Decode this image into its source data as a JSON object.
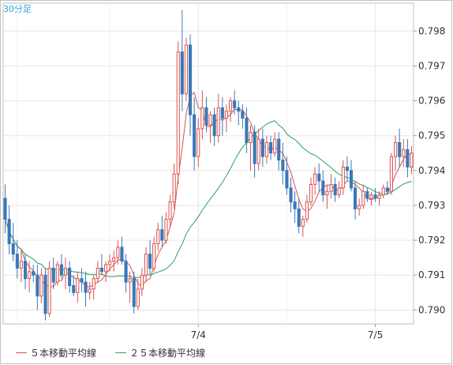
{
  "chart_data": {
    "type": "candlestick",
    "timeframe": "30分足",
    "y_ticks": [
      "0.798",
      "0.797",
      "0.796",
      "0.795",
      "0.794",
      "0.793",
      "0.792",
      "0.791",
      "0.790"
    ],
    "y_range": [
      0.7896,
      0.7988
    ],
    "x_ticks": [
      {
        "label": "7/4",
        "index": 48
      },
      {
        "label": "7/5",
        "index": 92
      }
    ],
    "bar_count": 102,
    "grid": true,
    "up_color": "#d9534f",
    "down_color": "#3a78b8",
    "ohlc": [
      [
        0.7932,
        0.7936,
        0.7922,
        0.7926
      ],
      [
        0.7926,
        0.793,
        0.7916,
        0.7919
      ],
      [
        0.7919,
        0.7925,
        0.7914,
        0.7916
      ],
      [
        0.7916,
        0.792,
        0.7909,
        0.7912
      ],
      [
        0.7912,
        0.7917,
        0.7908,
        0.7914
      ],
      [
        0.7914,
        0.7916,
        0.7906,
        0.7909
      ],
      [
        0.7909,
        0.7914,
        0.7905,
        0.7911
      ],
      [
        0.7911,
        0.7913,
        0.7908,
        0.791
      ],
      [
        0.791,
        0.7913,
        0.79,
        0.7904
      ],
      [
        0.7904,
        0.7912,
        0.7902,
        0.791
      ],
      [
        0.791,
        0.7912,
        0.7897,
        0.7899
      ],
      [
        0.7899,
        0.7914,
        0.7898,
        0.7912
      ],
      [
        0.7912,
        0.7915,
        0.7906,
        0.7908
      ],
      [
        0.7908,
        0.7914,
        0.7907,
        0.7913
      ],
      [
        0.7913,
        0.7916,
        0.7909,
        0.791
      ],
      [
        0.791,
        0.7915,
        0.7906,
        0.7912
      ],
      [
        0.7912,
        0.7914,
        0.7905,
        0.7907
      ],
      [
        0.7907,
        0.791,
        0.7904,
        0.7905
      ],
      [
        0.7905,
        0.7911,
        0.7902,
        0.7909
      ],
      [
        0.7909,
        0.7912,
        0.7905,
        0.7908
      ],
      [
        0.7908,
        0.7911,
        0.7901,
        0.7905
      ],
      [
        0.7905,
        0.7908,
        0.7903,
        0.7906
      ],
      [
        0.7906,
        0.791,
        0.7903,
        0.7909
      ],
      [
        0.7909,
        0.7914,
        0.7908,
        0.7912
      ],
      [
        0.7912,
        0.7916,
        0.791,
        0.7911
      ],
      [
        0.7911,
        0.7914,
        0.7908,
        0.7913
      ],
      [
        0.7913,
        0.7916,
        0.7911,
        0.7914
      ],
      [
        0.7914,
        0.7917,
        0.7911,
        0.7915
      ],
      [
        0.7915,
        0.792,
        0.7913,
        0.7918
      ],
      [
        0.7918,
        0.7921,
        0.7913,
        0.7914
      ],
      [
        0.7914,
        0.7916,
        0.7905,
        0.7908
      ],
      [
        0.7908,
        0.7911,
        0.7902,
        0.7909
      ],
      [
        0.7909,
        0.7911,
        0.7899,
        0.7901
      ],
      [
        0.7901,
        0.7909,
        0.79,
        0.7906
      ],
      [
        0.7906,
        0.7912,
        0.7904,
        0.791
      ],
      [
        0.791,
        0.7918,
        0.7908,
        0.7916
      ],
      [
        0.7916,
        0.792,
        0.791,
        0.7912
      ],
      [
        0.7912,
        0.7921,
        0.7911,
        0.7919
      ],
      [
        0.7919,
        0.7925,
        0.7917,
        0.7923
      ],
      [
        0.7923,
        0.7927,
        0.7918,
        0.792
      ],
      [
        0.792,
        0.7928,
        0.7919,
        0.7926
      ],
      [
        0.7926,
        0.7933,
        0.7924,
        0.7931
      ],
      [
        0.7931,
        0.7942,
        0.7929,
        0.7939
      ],
      [
        0.7939,
        0.7977,
        0.7936,
        0.7974
      ],
      [
        0.7974,
        0.7986,
        0.7957,
        0.7962
      ],
      [
        0.7962,
        0.7978,
        0.796,
        0.7976
      ],
      [
        0.7976,
        0.7979,
        0.795,
        0.7956
      ],
      [
        0.7956,
        0.7961,
        0.794,
        0.7944
      ],
      [
        0.7944,
        0.7955,
        0.7941,
        0.7952
      ],
      [
        0.7952,
        0.7963,
        0.7949,
        0.7958
      ],
      [
        0.7958,
        0.7961,
        0.7951,
        0.7953
      ],
      [
        0.7953,
        0.7957,
        0.7948,
        0.7956
      ],
      [
        0.7956,
        0.7958,
        0.7947,
        0.795
      ],
      [
        0.795,
        0.7962,
        0.7948,
        0.7958
      ],
      [
        0.7958,
        0.7961,
        0.795,
        0.7955
      ],
      [
        0.7955,
        0.7959,
        0.7951,
        0.7957
      ],
      [
        0.7957,
        0.7961,
        0.7954,
        0.796
      ],
      [
        0.796,
        0.7963,
        0.7956,
        0.7958
      ],
      [
        0.7958,
        0.796,
        0.7953,
        0.7957
      ],
      [
        0.7957,
        0.7959,
        0.7952,
        0.7955
      ],
      [
        0.7955,
        0.7958,
        0.7945,
        0.7948
      ],
      [
        0.7948,
        0.7953,
        0.794,
        0.7951
      ],
      [
        0.7951,
        0.7953,
        0.7938,
        0.7942
      ],
      [
        0.7942,
        0.7952,
        0.794,
        0.7949
      ],
      [
        0.7949,
        0.7952,
        0.7941,
        0.7944
      ],
      [
        0.7944,
        0.795,
        0.7942,
        0.7948
      ],
      [
        0.7948,
        0.795,
        0.7943,
        0.7945
      ],
      [
        0.7945,
        0.7951,
        0.7944,
        0.7949
      ],
      [
        0.7949,
        0.7951,
        0.794,
        0.7943
      ],
      [
        0.7943,
        0.7948,
        0.7936,
        0.794
      ],
      [
        0.794,
        0.7944,
        0.7933,
        0.7935
      ],
      [
        0.7935,
        0.7938,
        0.7928,
        0.7931
      ],
      [
        0.7931,
        0.7934,
        0.7925,
        0.7929
      ],
      [
        0.7929,
        0.7932,
        0.7922,
        0.7924
      ],
      [
        0.7924,
        0.7927,
        0.7921,
        0.7926
      ],
      [
        0.7926,
        0.7933,
        0.7925,
        0.7931
      ],
      [
        0.7931,
        0.7938,
        0.793,
        0.7936
      ],
      [
        0.7936,
        0.7941,
        0.7933,
        0.7939
      ],
      [
        0.7939,
        0.7942,
        0.7934,
        0.7937
      ],
      [
        0.7937,
        0.794,
        0.7931,
        0.7933
      ],
      [
        0.7933,
        0.7936,
        0.7929,
        0.7934
      ],
      [
        0.7934,
        0.7939,
        0.7932,
        0.7936
      ],
      [
        0.7936,
        0.7938,
        0.7931,
        0.7933
      ],
      [
        0.7933,
        0.7937,
        0.7932,
        0.7935
      ],
      [
        0.7935,
        0.7943,
        0.7933,
        0.7941
      ],
      [
        0.7941,
        0.7944,
        0.7937,
        0.794
      ],
      [
        0.794,
        0.7943,
        0.7934,
        0.7935
      ],
      [
        0.7935,
        0.7937,
        0.7926,
        0.7929
      ],
      [
        0.7929,
        0.7932,
        0.7927,
        0.793
      ],
      [
        0.793,
        0.7936,
        0.7929,
        0.7934
      ],
      [
        0.7934,
        0.7935,
        0.7931,
        0.7932
      ],
      [
        0.7932,
        0.7934,
        0.793,
        0.7933
      ],
      [
        0.7933,
        0.7935,
        0.7931,
        0.7932
      ],
      [
        0.7932,
        0.7934,
        0.793,
        0.7933
      ],
      [
        0.7933,
        0.7936,
        0.7932,
        0.7935
      ],
      [
        0.7935,
        0.7937,
        0.7933,
        0.7934
      ],
      [
        0.7934,
        0.7945,
        0.7933,
        0.7944
      ],
      [
        0.7944,
        0.795,
        0.794,
        0.7948
      ],
      [
        0.7948,
        0.7952,
        0.7941,
        0.7944
      ],
      [
        0.7944,
        0.7949,
        0.7941,
        0.7946
      ],
      [
        0.7946,
        0.7949,
        0.7938,
        0.7941
      ],
      [
        0.7941,
        0.7947,
        0.7939,
        0.7945
      ]
    ],
    "series": [
      {
        "name": "５本移動平均線",
        "color": "#d9534f",
        "period": 5
      },
      {
        "name": "２５本移動平均線",
        "color": "#2a9d6a",
        "period": 25
      }
    ]
  }
}
